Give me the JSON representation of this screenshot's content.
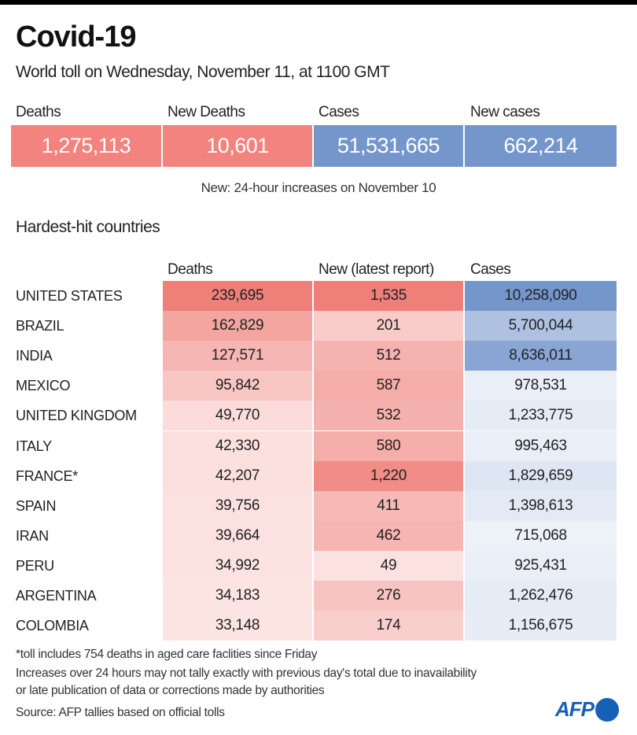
{
  "title": "Covid-19",
  "subtitle": "World toll on Wednesday, November 11,  at 1100 GMT",
  "stats": [
    {
      "label": "Deaths",
      "value": "1,275,113",
      "color": "#f2837e"
    },
    {
      "label": "New Deaths",
      "value": "10,601",
      "color": "#f2837e"
    },
    {
      "label": "Cases",
      "value": "51,531,665",
      "color": "#7596cb"
    },
    {
      "label": "New cases",
      "value": "662,214",
      "color": "#7596cb"
    }
  ],
  "note": "New: 24-hour increases on November 10",
  "section_title": "Hardest-hit countries",
  "chart_data": {
    "type": "table",
    "columns": [
      "Deaths",
      "New (latest report)",
      "Cases"
    ],
    "rows": [
      {
        "country": "UNITED STATES",
        "deaths": "239,695",
        "new": "1,535",
        "cases": "10,258,090",
        "d": 239695,
        "n": 1535,
        "c": 10258090
      },
      {
        "country": "BRAZIL",
        "deaths": "162,829",
        "new": "201",
        "cases": "5,700,044",
        "d": 162829,
        "n": 201,
        "c": 5700044
      },
      {
        "country": "INDIA",
        "deaths": "127,571",
        "new": "512",
        "cases": "8,636,011",
        "d": 127571,
        "n": 512,
        "c": 8636011
      },
      {
        "country": "MEXICO",
        "deaths": "95,842",
        "new": "587",
        "cases": "978,531",
        "d": 95842,
        "n": 587,
        "c": 978531
      },
      {
        "country": "UNITED KINGDOM",
        "deaths": "49,770",
        "new": "532",
        "cases": "1,233,775",
        "d": 49770,
        "n": 532,
        "c": 1233775
      },
      {
        "country": "ITALY",
        "deaths": "42,330",
        "new": "580",
        "cases": "995,463",
        "d": 42330,
        "n": 580,
        "c": 995463
      },
      {
        "country": "FRANCE*",
        "deaths": "42,207",
        "new": "1,220",
        "cases": "1,829,659",
        "d": 42207,
        "n": 1220,
        "c": 1829659
      },
      {
        "country": "SPAIN",
        "deaths": "39,756",
        "new": "411",
        "cases": "1,398,613",
        "d": 39756,
        "n": 411,
        "c": 1398613
      },
      {
        "country": "IRAN",
        "deaths": "39,664",
        "new": "462",
        "cases": "715,068",
        "d": 39664,
        "n": 462,
        "c": 715068
      },
      {
        "country": "PERU",
        "deaths": "34,992",
        "new": "49",
        "cases": "925,431",
        "d": 34992,
        "n": 49,
        "c": 925431
      },
      {
        "country": "ARGENTINA",
        "deaths": "34,183",
        "new": "276",
        "cases": "1,262,476",
        "d": 34183,
        "n": 276,
        "c": 1262476
      },
      {
        "country": "COLOMBIA",
        "deaths": "33,148",
        "new": "174",
        "cases": "1,156,675",
        "d": 33148,
        "n": 174,
        "c": 1156675
      }
    ],
    "red": "#ef7f79",
    "blue": "#7596cb"
  },
  "footnotes": [
    "*toll includes 754 deaths in aged care faclities since Friday",
    "Increases over 24 hours may not tally exactly with previous day's total due to inavailability",
    "or late publication of data or corrections made by authorities",
    "Source: AFP tallies based on official tolls"
  ],
  "logo": "AFP"
}
